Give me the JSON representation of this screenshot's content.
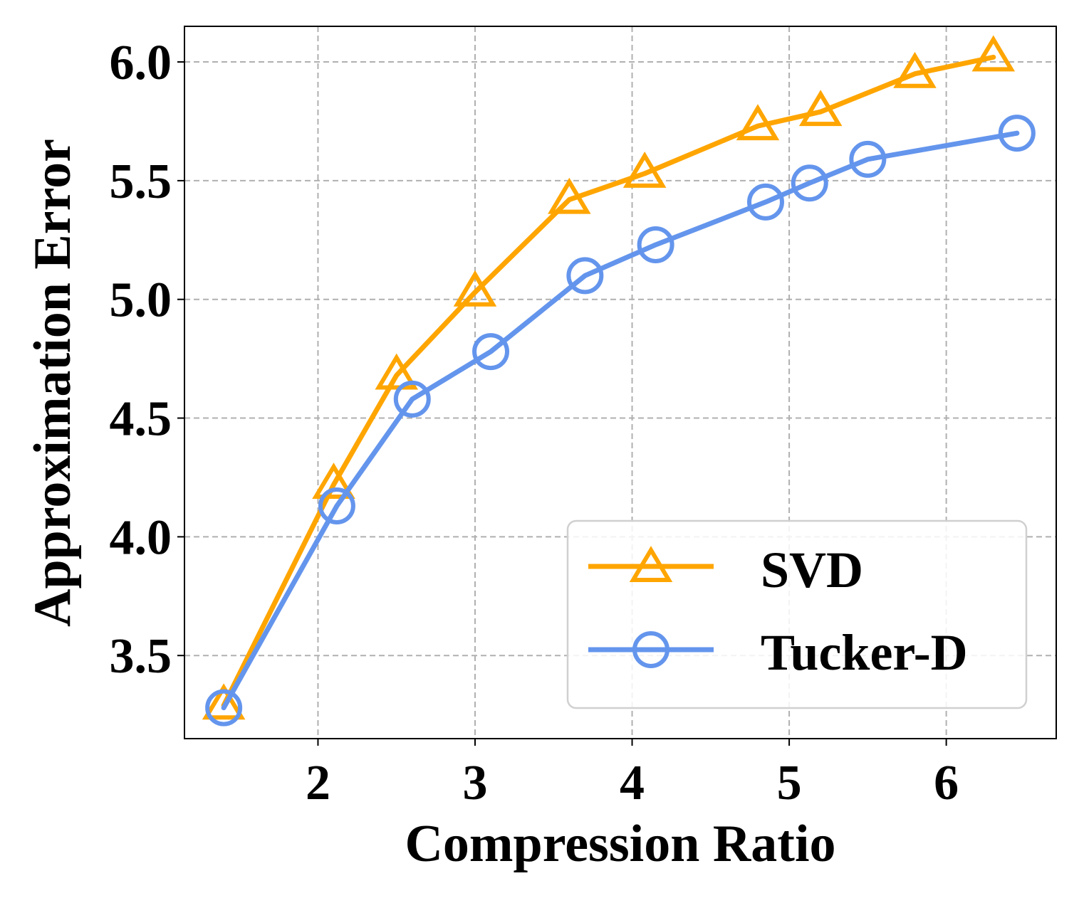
{
  "chart_data": {
    "type": "line",
    "title": "",
    "xlabel": "Compression Ratio",
    "ylabel": "Approximation Error",
    "xlim": [
      1.15,
      6.7
    ],
    "ylim": [
      3.15,
      6.15
    ],
    "xticks": [
      2,
      3,
      4,
      5,
      6
    ],
    "xtick_labels": [
      "2",
      "3",
      "4",
      "5",
      "6"
    ],
    "yticks": [
      3.5,
      4.0,
      4.5,
      5.0,
      5.5,
      6.0
    ],
    "ytick_labels": [
      "3.5",
      "4.0",
      "4.5",
      "5.0",
      "5.5",
      "6.0"
    ],
    "grid": true,
    "legend_position": "lower-right",
    "series": [
      {
        "name": "SVD",
        "color": "#FFA500",
        "marker": "triangle",
        "x": [
          1.4,
          2.1,
          2.5,
          3.0,
          3.6,
          4.08,
          4.8,
          5.2,
          5.8,
          6.3
        ],
        "y": [
          3.29,
          4.22,
          4.68,
          5.03,
          5.42,
          5.53,
          5.73,
          5.79,
          5.95,
          6.02
        ]
      },
      {
        "name": "Tucker-D",
        "color": "#6495ED",
        "marker": "circle",
        "x": [
          1.4,
          2.12,
          2.6,
          3.1,
          3.7,
          4.15,
          4.85,
          5.13,
          5.5,
          6.45
        ],
        "y": [
          3.28,
          4.13,
          4.58,
          4.78,
          5.1,
          5.23,
          5.41,
          5.49,
          5.59,
          5.7
        ]
      }
    ]
  }
}
